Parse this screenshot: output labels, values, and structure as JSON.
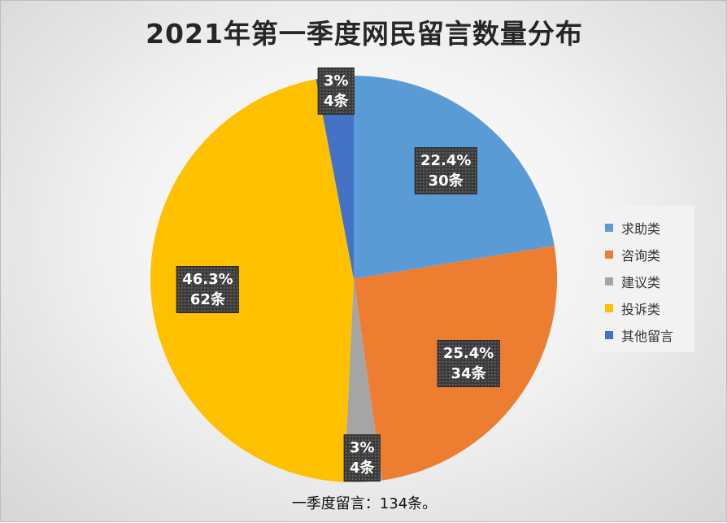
{
  "chart_data": {
    "type": "pie",
    "title": "2021年第一季度网民留言数量分布",
    "categories": [
      "求助类",
      "咨询类",
      "建议类",
      "投诉类",
      "其他留言"
    ],
    "values": [
      30,
      34,
      4,
      62,
      4
    ],
    "percent_labels": [
      "22.4%",
      "25.4%",
      "3%",
      "46.3%",
      "3%"
    ],
    "count_labels": [
      "30条",
      "34条",
      "4条",
      "62条",
      "4条"
    ],
    "colors": [
      "#5B9BD5",
      "#ED7D31",
      "#A5A5A5",
      "#FFC000",
      "#4472C4"
    ],
    "legend_position": "right",
    "total": 134
  },
  "note": "一季度留言：134条。"
}
